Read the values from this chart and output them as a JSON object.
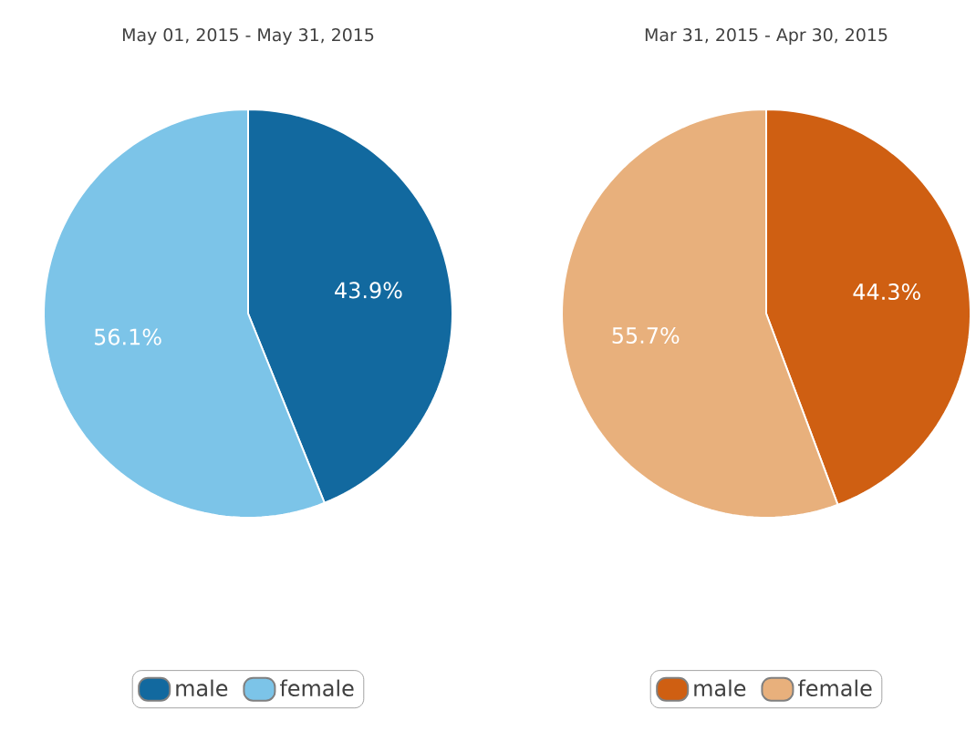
{
  "chart_data": [
    {
      "type": "pie",
      "title": "May 01, 2015 - May 31, 2015",
      "categories": [
        "male",
        "female"
      ],
      "values": [
        43.9,
        56.1
      ],
      "colors": [
        "#12699f",
        "#7cc4e8"
      ],
      "value_labels": [
        "43.9%",
        "56.1%"
      ],
      "legend": "bottom"
    },
    {
      "type": "pie",
      "title": "Mar 31, 2015 - Apr 30, 2015",
      "categories": [
        "male",
        "female"
      ],
      "values": [
        44.3,
        55.7
      ],
      "colors": [
        "#cf5f12",
        "#e8b07c"
      ],
      "value_labels": [
        "44.3%",
        "55.7%"
      ],
      "legend": "bottom"
    }
  ]
}
